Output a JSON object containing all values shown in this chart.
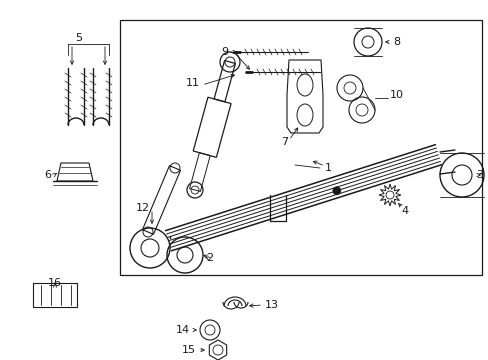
{
  "bg_color": "#ffffff",
  "line_color": "#1a1a1a",
  "border": [
    0.245,
    0.06,
    0.985,
    0.865
  ],
  "figsize": [
    4.89,
    3.6
  ],
  "dpi": 100
}
